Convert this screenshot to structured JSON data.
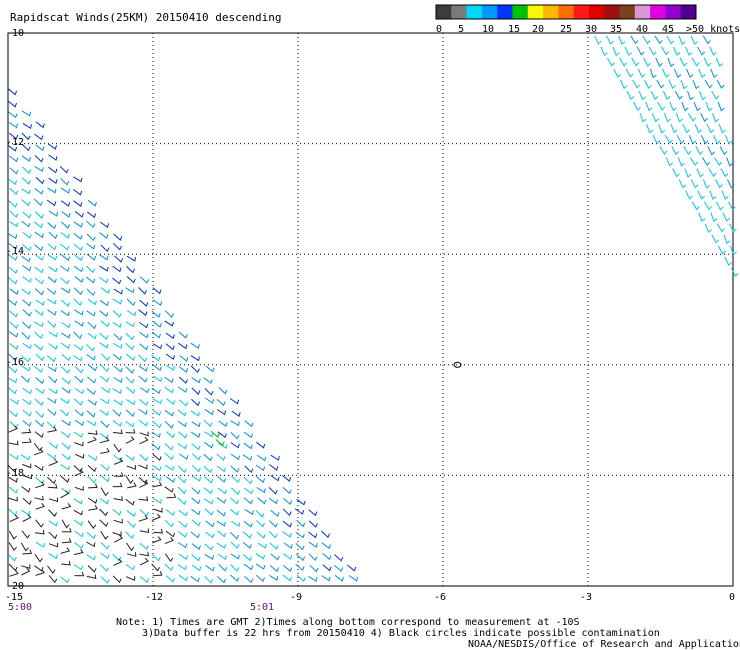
{
  "title": "Rapidscat Winds(25KM) 20150410 descending",
  "colorbar": {
    "segments": [
      {
        "color": "#3c3c3c"
      },
      {
        "color": "#7a7a7a"
      },
      {
        "color": "#00d8f8"
      },
      {
        "color": "#0098ff"
      },
      {
        "color": "#0034ff"
      },
      {
        "color": "#00c400"
      },
      {
        "color": "#f8f800"
      },
      {
        "color": "#ffb800"
      },
      {
        "color": "#ff6c00"
      },
      {
        "color": "#ff1818"
      },
      {
        "color": "#e00000"
      },
      {
        "color": "#a01010"
      },
      {
        "color": "#7a4018"
      },
      {
        "color": "#d898d8"
      },
      {
        "color": "#e000e0"
      },
      {
        "color": "#9000d0"
      },
      {
        "color": "#500090"
      }
    ],
    "labels": [
      "0",
      "5",
      "10",
      "15",
      "20",
      "25",
      "30",
      "35",
      "40",
      "45",
      ">50 knots"
    ]
  },
  "y_axis": [
    "-10",
    "-12",
    "-14",
    "-16",
    "-18",
    "-20"
  ],
  "x_axis": [
    "-15",
    "-12",
    "-9",
    "-6",
    "-3",
    "0"
  ],
  "time_labels": [
    "5:00",
    "5:01"
  ],
  "notes": [
    "Note: 1) Times are GMT 2)Times along bottom correspond to measurement at -10S",
    "3)Data buffer is 22 hrs from 20150410 4) Black circles indicate possible contamination",
    "NOAA/NESDIS/Office of Research and Applications"
  ],
  "palette": {
    "slow": "#222222",
    "light": "#00c8f0",
    "mid": "#0090f0",
    "fast": "#0030e0",
    "green": "#00c000"
  },
  "contamination_marker": {
    "lon": -5.7,
    "lat": -16.0
  }
}
